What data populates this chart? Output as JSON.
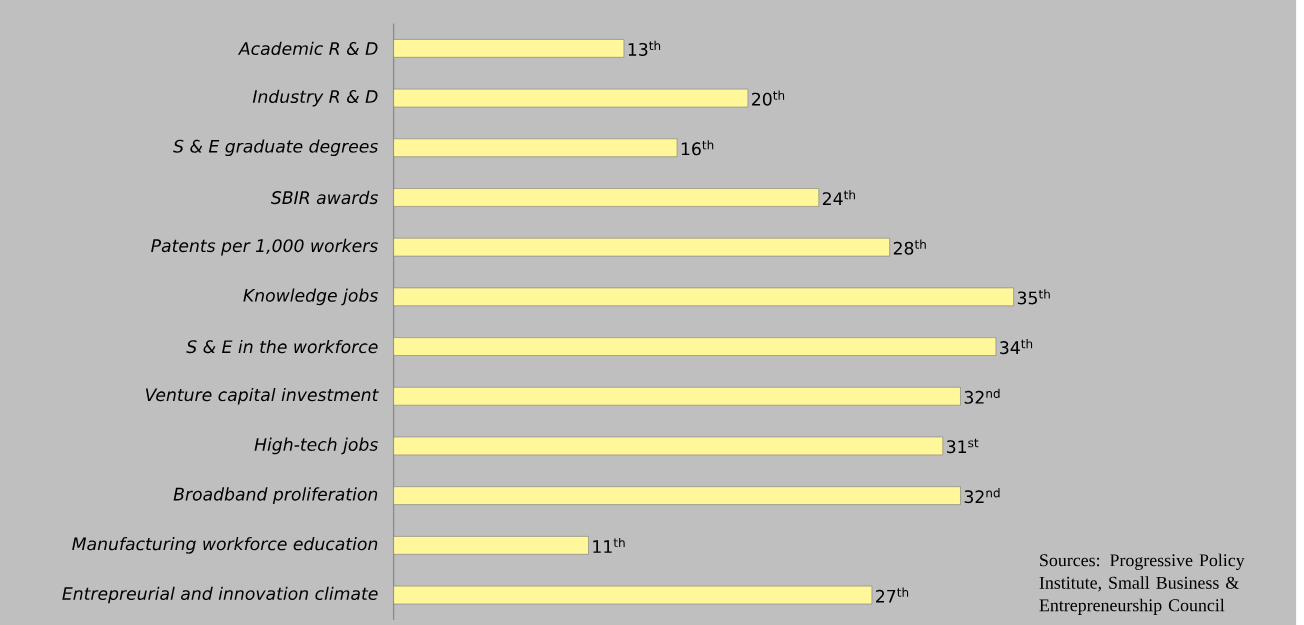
{
  "chart_data": {
    "type": "bar",
    "orientation": "horizontal",
    "categories": [
      "Academic R & D",
      "Industry R & D",
      "S & E graduate degrees",
      "SBIR awards",
      "Patents per 1,000 workers",
      "Knowledge jobs",
      "S & E in the workforce",
      "Venture capital investment",
      "High-tech jobs",
      "Broadband proliferation",
      "Manufacturing workforce education",
      "Entrepreurial and innovation climate"
    ],
    "values": [
      13,
      20,
      16,
      24,
      28,
      35,
      34,
      32,
      31,
      32,
      11,
      27
    ],
    "value_labels": [
      "13$^{th}$",
      "20$^{th}$",
      "16$^{th}$",
      "24$^{th}$",
      "28$^{th}$",
      "35$^{th}$",
      "34$^{th}$",
      "32$^{nd}$",
      "31$^{st}$",
      "32$^{nd}$",
      "11$^{th}$",
      "27$^{th}$"
    ],
    "color": "#fff799",
    "annotations": [
      "Sources: Progressive Policy Institute, Small Business & Entrepreneurship Council"
    ]
  }
}
